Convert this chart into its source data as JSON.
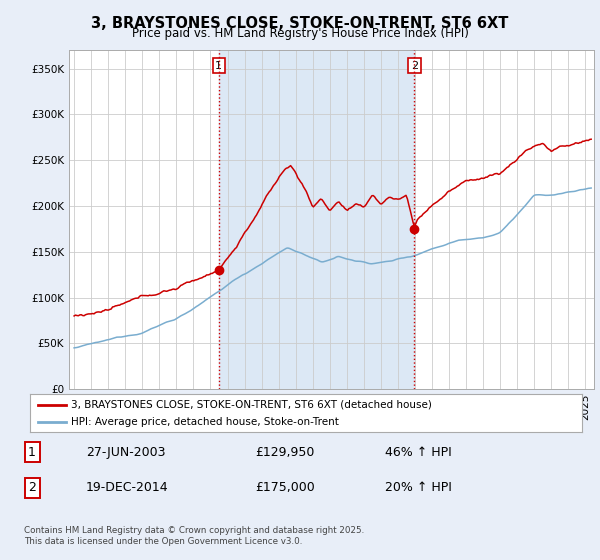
{
  "title": "3, BRAYSTONES CLOSE, STOKE-ON-TRENT, ST6 6XT",
  "subtitle": "Price paid vs. HM Land Registry's House Price Index (HPI)",
  "legend_line1": "3, BRAYSTONES CLOSE, STOKE-ON-TRENT, ST6 6XT (detached house)",
  "legend_line2": "HPI: Average price, detached house, Stoke-on-Trent",
  "purchase1_date": "27-JUN-2003",
  "purchase1_price": 129950,
  "purchase1_hpi": "46% ↑ HPI",
  "purchase2_date": "19-DEC-2014",
  "purchase2_price": 175000,
  "purchase2_hpi": "20% ↑ HPI",
  "footer": "Contains HM Land Registry data © Crown copyright and database right 2025.\nThis data is licensed under the Open Government Licence v3.0.",
  "red_color": "#cc0000",
  "blue_color": "#7aadcf",
  "shade_color": "#dce8f5",
  "vline_color": "#cc0000",
  "background_color": "#e8eef8",
  "plot_bg": "#ffffff",
  "ylim": [
    0,
    370000
  ],
  "yticks": [
    0,
    50000,
    100000,
    150000,
    200000,
    250000,
    300000,
    350000
  ],
  "xmin": 1994.7,
  "xmax": 2025.5
}
